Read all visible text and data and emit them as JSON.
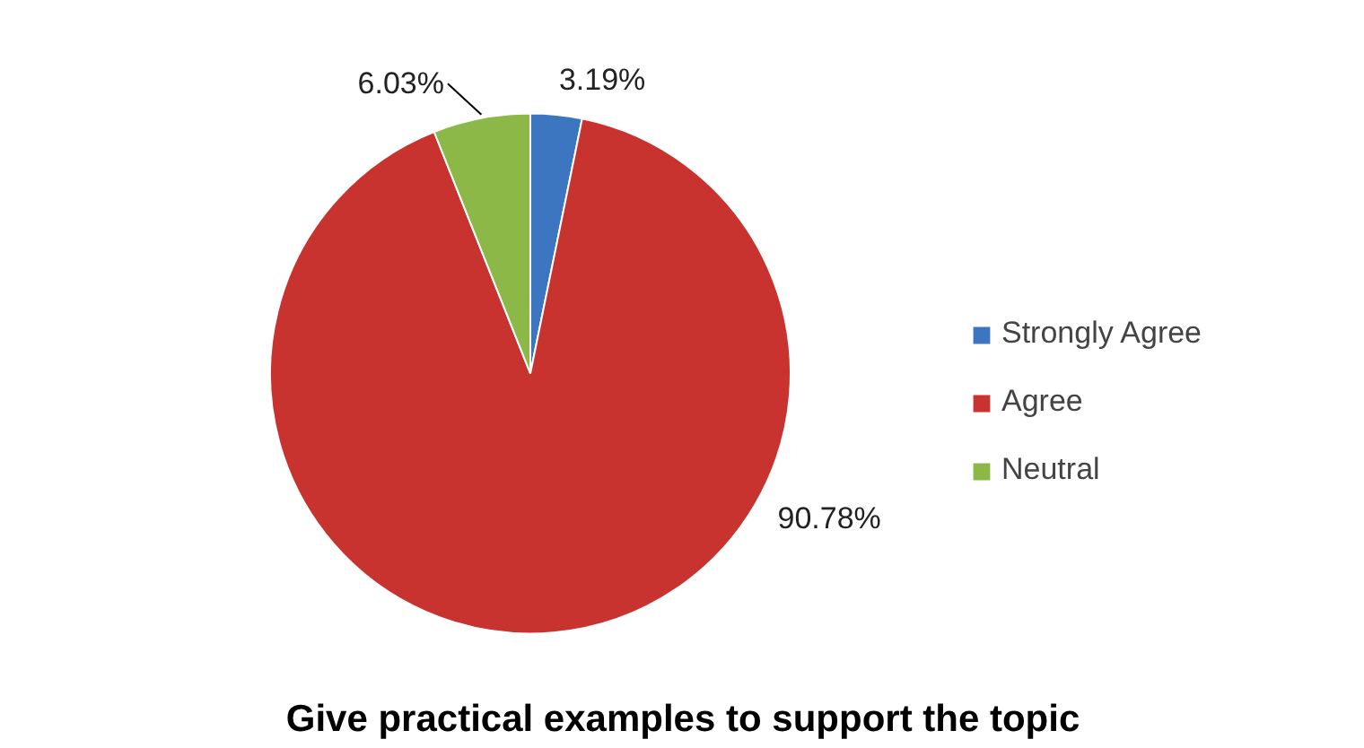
{
  "chart_data": {
    "type": "pie",
    "title": "Give practical examples to support the topic",
    "categories": [
      "Strongly Agree",
      "Agree",
      "Neutral"
    ],
    "values": [
      3.19,
      90.78,
      6.03
    ],
    "colors": [
      "#3c75c0",
      "#c8332f",
      "#8cb847"
    ],
    "value_labels": [
      "3.19%",
      "90.78%",
      "6.03%"
    ],
    "legend": "right"
  }
}
